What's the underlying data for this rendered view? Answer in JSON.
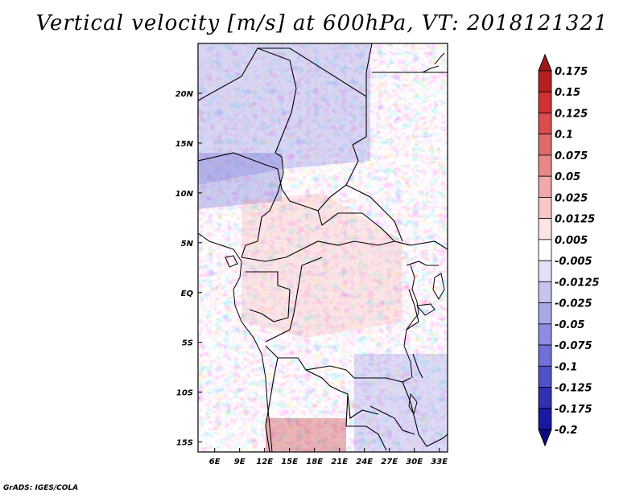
{
  "title": "Vertical velocity [m/s] at 600hPa, VT: 2018121321",
  "credit": "GrADS: IGES/COLA",
  "map": {
    "lon_range": [
      4,
      34
    ],
    "lat_range": [
      -16,
      25
    ],
    "x_ticks": [
      "6E",
      "9E",
      "12E",
      "15E",
      "18E",
      "21E",
      "24E",
      "27E",
      "30E",
      "33E"
    ],
    "x_tick_values": [
      6,
      9,
      12,
      15,
      18,
      21,
      24,
      27,
      30,
      33
    ],
    "y_ticks": [
      "20N",
      "15N",
      "10N",
      "5N",
      "EQ",
      "5S",
      "10S",
      "15S"
    ],
    "y_tick_values": [
      20,
      15,
      10,
      5,
      0,
      -5,
      -10,
      -15
    ]
  },
  "colorbar": {
    "labels": [
      "0.175",
      "0.15",
      "0.125",
      "0.1",
      "0.075",
      "0.05",
      "0.025",
      "0.0125",
      "0.005",
      "-0.005",
      "-0.0125",
      "-0.025",
      "-0.05",
      "-0.075",
      "-0.1",
      "-0.125",
      "-0.175",
      "-0.2"
    ],
    "colors": [
      "#a01818",
      "#b82020",
      "#d03030",
      "#dc4c4c",
      "#e06a6a",
      "#e88888",
      "#f0a8a8",
      "#f6c8c8",
      "#fbe4e4",
      "#ffffff",
      "#e0e0f6",
      "#c4c4ee",
      "#a8a8e8",
      "#8c8ce0",
      "#7070d8",
      "#5050c8",
      "#3030b0",
      "#1818a0",
      "#0a0a80"
    ]
  }
}
